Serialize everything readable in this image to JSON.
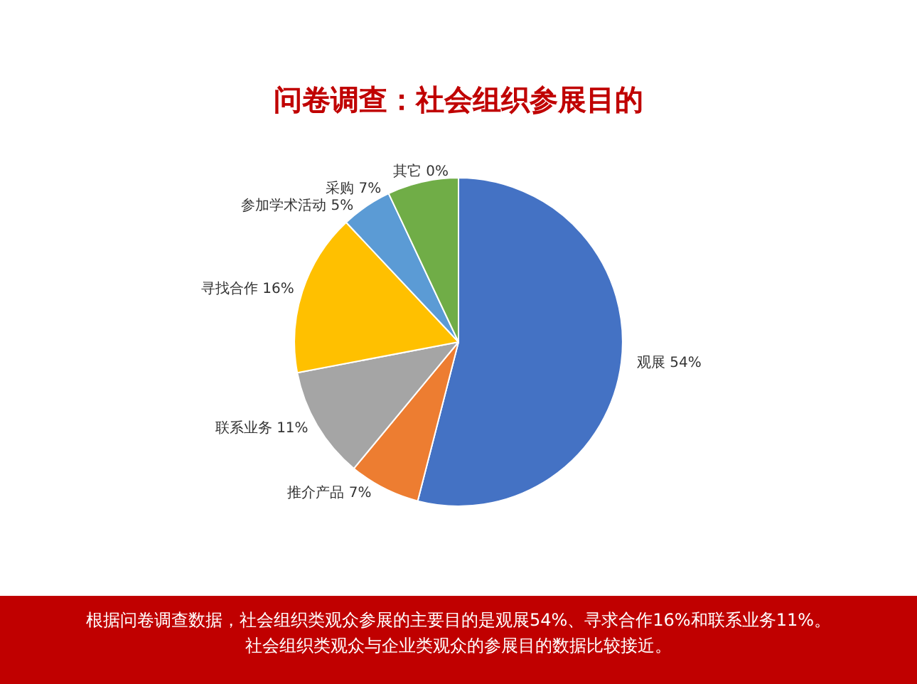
{
  "chart_data": {
    "type": "pie",
    "title": "问卷调查：社会组织参展目的",
    "categories": [
      "观展",
      "推介产品",
      "联系业务",
      "寻找合作",
      "参加学术活动",
      "采购",
      "其它"
    ],
    "values": [
      54,
      7,
      11,
      16,
      5,
      7,
      0
    ],
    "colors": [
      "#4472c4",
      "#ed7d31",
      "#a5a5a5",
      "#ffc000",
      "#5b9bd5",
      "#70ad47",
      "#264478"
    ],
    "value_labels": [
      "54%",
      "7%",
      "11%",
      "16%",
      "5%",
      "7%",
      "0%"
    ],
    "legend": false,
    "annotations": [
      "根据问卷调查数据，社会组织类观众参展的主要目的是观展54%、寻求合作16%和联系业务11%。",
      "社会组织类观众与企业类观众的参展目的数据比较接近。"
    ]
  }
}
